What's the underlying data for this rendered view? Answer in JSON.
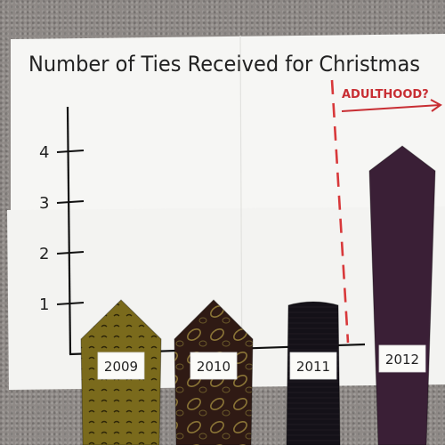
{
  "chart_data": {
    "type": "bar",
    "title": "Number of Ties Received for Christmas",
    "categories": [
      "2009",
      "2010",
      "2011",
      "2012"
    ],
    "values": [
      1,
      1,
      1,
      4
    ],
    "yticks": [
      "1",
      "2",
      "3",
      "4"
    ],
    "ylim": [
      0,
      4
    ],
    "annotation": "ADULTHOOD?",
    "bar_style": "neckties",
    "colors": [
      "#7a6a1c",
      "#3a1f15",
      "#141014",
      "#3a1f36"
    ]
  }
}
